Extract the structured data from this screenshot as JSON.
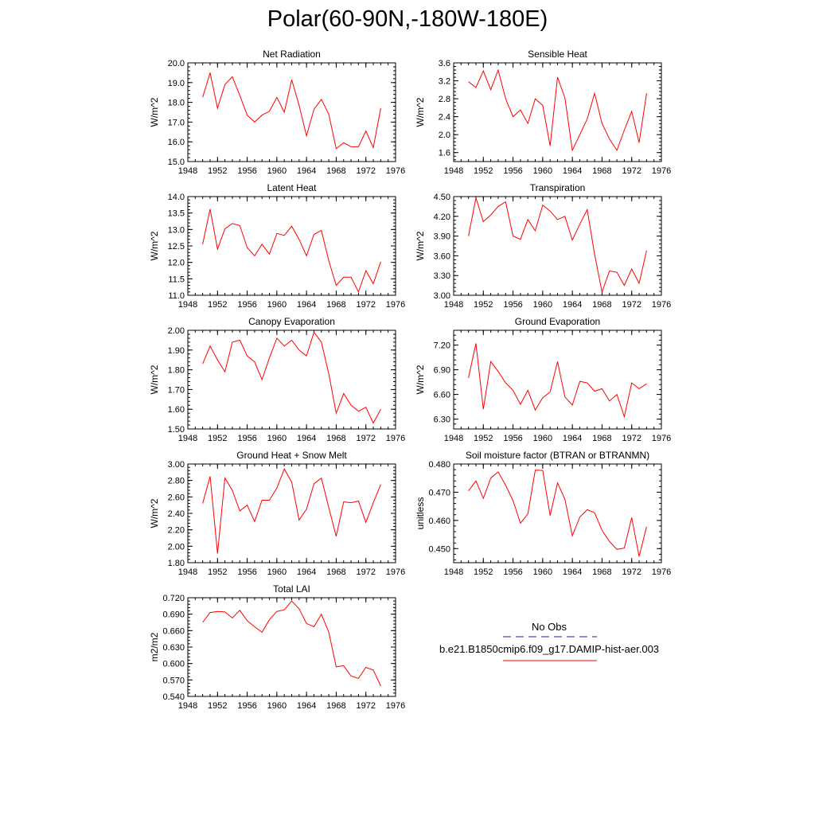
{
  "title": "Polar(60-90N,-180W-180E)",
  "legend": {
    "entries": [
      {
        "label": "No Obs",
        "color": "#1a1aa8",
        "dash": true
      },
      {
        "label": "b.e21.B1850cmip6.f09_g17.DAMIP-hist-aer.003",
        "color": "#ff0000",
        "dash": false
      }
    ]
  },
  "chart_data": [
    {
      "type": "line",
      "title": "Net Radiation",
      "ylabel": "W/m^2",
      "xlim": [
        1948,
        1976
      ],
      "xticks": [
        "1948",
        "1952",
        "1956",
        "1960",
        "1964",
        "1968",
        "1972",
        "1976"
      ],
      "ylim": [
        15.0,
        20.0
      ],
      "yticks": [
        "15.0",
        "16.0",
        "17.0",
        "18.0",
        "19.0",
        "20.0"
      ],
      "x": [
        1950,
        1951,
        1952,
        1953,
        1954,
        1955,
        1956,
        1957,
        1958,
        1959,
        1960,
        1961,
        1962,
        1963,
        1964,
        1965,
        1966,
        1967,
        1968,
        1969,
        1970,
        1971,
        1972,
        1973,
        1974
      ],
      "series": [
        {
          "color": "#ff0000",
          "values": [
            18.25,
            19.5,
            17.7,
            18.9,
            19.3,
            18.35,
            17.35,
            17.0,
            17.35,
            17.55,
            18.25,
            17.5,
            19.15,
            17.85,
            16.3,
            17.65,
            18.15,
            17.4,
            15.65,
            15.95,
            15.75,
            15.75,
            16.55,
            15.7,
            17.7
          ]
        }
      ]
    },
    {
      "type": "line",
      "title": "Sensible Heat",
      "ylabel": "W/m^2",
      "xlim": [
        1948,
        1976
      ],
      "xticks": [
        "1948",
        "1952",
        "1956",
        "1960",
        "1964",
        "1968",
        "1972",
        "1976"
      ],
      "ylim": [
        1.4,
        3.6
      ],
      "yticks": [
        "1.6",
        "2.0",
        "2.4",
        "2.8",
        "3.2",
        "3.6"
      ],
      "x": [
        1950,
        1951,
        1952,
        1953,
        1954,
        1955,
        1956,
        1957,
        1958,
        1959,
        1960,
        1961,
        1962,
        1963,
        1964,
        1965,
        1966,
        1967,
        1968,
        1969,
        1970,
        1971,
        1972,
        1973,
        1974
      ],
      "series": [
        {
          "color": "#ff0000",
          "values": [
            3.18,
            3.05,
            3.42,
            3.0,
            3.44,
            2.8,
            2.4,
            2.55,
            2.25,
            2.8,
            2.65,
            1.75,
            3.28,
            2.82,
            1.65,
            2.0,
            2.35,
            2.92,
            2.25,
            1.9,
            1.65,
            2.1,
            2.52,
            1.82,
            2.92
          ]
        }
      ]
    },
    {
      "type": "line",
      "title": "Latent Heat",
      "ylabel": "W/m^2",
      "xlim": [
        1948,
        1976
      ],
      "xticks": [
        "1948",
        "1952",
        "1956",
        "1960",
        "1964",
        "1968",
        "1972",
        "1976"
      ],
      "ylim": [
        11.0,
        14.0
      ],
      "yticks": [
        "11.0",
        "11.5",
        "12.0",
        "12.5",
        "13.0",
        "13.5",
        "14.0"
      ],
      "x": [
        1950,
        1951,
        1952,
        1953,
        1954,
        1955,
        1956,
        1957,
        1958,
        1959,
        1960,
        1961,
        1962,
        1963,
        1964,
        1965,
        1966,
        1967,
        1968,
        1969,
        1970,
        1971,
        1972,
        1973,
        1974
      ],
      "series": [
        {
          "color": "#ff0000",
          "values": [
            12.55,
            13.62,
            12.4,
            13.02,
            13.18,
            13.12,
            12.45,
            12.2,
            12.55,
            12.25,
            12.88,
            12.82,
            13.1,
            12.7,
            12.2,
            12.85,
            12.97,
            12.05,
            11.3,
            11.55,
            11.55,
            11.1,
            11.75,
            11.35,
            12.02
          ]
        }
      ]
    },
    {
      "type": "line",
      "title": "Transpiration",
      "ylabel": "W/m^2",
      "xlim": [
        1948,
        1976
      ],
      "xticks": [
        "1948",
        "1952",
        "1956",
        "1960",
        "1964",
        "1968",
        "1972",
        "1976"
      ],
      "ylim": [
        3.0,
        4.5
      ],
      "yticks": [
        "3.00",
        "3.30",
        "3.60",
        "3.90",
        "4.20",
        "4.50"
      ],
      "x": [
        1950,
        1951,
        1952,
        1953,
        1954,
        1955,
        1956,
        1957,
        1958,
        1959,
        1960,
        1961,
        1962,
        1963,
        1964,
        1965,
        1966,
        1967,
        1968,
        1969,
        1970,
        1971,
        1972,
        1973,
        1974
      ],
      "series": [
        {
          "color": "#ff0000",
          "values": [
            3.9,
            4.48,
            4.12,
            4.22,
            4.35,
            4.42,
            3.9,
            3.85,
            4.15,
            3.98,
            4.37,
            4.28,
            4.15,
            4.2,
            3.84,
            4.08,
            4.3,
            3.62,
            3.05,
            3.37,
            3.35,
            3.15,
            3.4,
            3.18,
            3.68
          ]
        }
      ]
    },
    {
      "type": "line",
      "title": "Canopy Evaporation",
      "ylabel": "W/m^2",
      "xlim": [
        1948,
        1976
      ],
      "xticks": [
        "1948",
        "1952",
        "1956",
        "1960",
        "1964",
        "1968",
        "1972",
        "1976"
      ],
      "ylim": [
        1.5,
        2.0
      ],
      "yticks": [
        "1.50",
        "1.60",
        "1.70",
        "1.80",
        "1.90",
        "2.00"
      ],
      "x": [
        1950,
        1951,
        1952,
        1953,
        1954,
        1955,
        1956,
        1957,
        1958,
        1959,
        1960,
        1961,
        1962,
        1963,
        1964,
        1965,
        1966,
        1967,
        1968,
        1969,
        1970,
        1971,
        1972,
        1973,
        1974
      ],
      "series": [
        {
          "color": "#ff0000",
          "values": [
            1.83,
            1.92,
            1.85,
            1.79,
            1.94,
            1.95,
            1.87,
            1.84,
            1.75,
            1.86,
            1.96,
            1.92,
            1.95,
            1.9,
            1.87,
            1.99,
            1.94,
            1.78,
            1.58,
            1.68,
            1.62,
            1.59,
            1.61,
            1.53,
            1.6
          ]
        }
      ]
    },
    {
      "type": "line",
      "title": "Ground Evaporation",
      "ylabel": "W/m^2",
      "xlim": [
        1948,
        1976
      ],
      "xticks": [
        "1948",
        "1952",
        "1956",
        "1960",
        "1964",
        "1968",
        "1972",
        "1976"
      ],
      "ylim": [
        6.18,
        7.38
      ],
      "yticks": [
        "6.30",
        "6.60",
        "6.90",
        "7.20"
      ],
      "x": [
        1950,
        1951,
        1952,
        1953,
        1954,
        1955,
        1956,
        1957,
        1958,
        1959,
        1960,
        1961,
        1962,
        1963,
        1964,
        1965,
        1966,
        1967,
        1968,
        1969,
        1970,
        1971,
        1972,
        1973,
        1974
      ],
      "series": [
        {
          "color": "#ff0000",
          "values": [
            6.8,
            7.22,
            6.42,
            7.0,
            6.88,
            6.74,
            6.65,
            6.48,
            6.65,
            6.41,
            6.56,
            6.63,
            7.0,
            6.57,
            6.47,
            6.76,
            6.74,
            6.64,
            6.67,
            6.52,
            6.6,
            6.33,
            6.74,
            6.67,
            6.73
          ]
        }
      ]
    },
    {
      "type": "line",
      "title": "Ground Heat + Snow Melt",
      "ylabel": "W/m^2",
      "xlim": [
        1948,
        1976
      ],
      "xticks": [
        "1948",
        "1952",
        "1956",
        "1960",
        "1964",
        "1968",
        "1972",
        "1976"
      ],
      "ylim": [
        1.8,
        3.0
      ],
      "yticks": [
        "1.80",
        "2.00",
        "2.20",
        "2.40",
        "2.60",
        "2.80",
        "3.00"
      ],
      "x": [
        1950,
        1951,
        1952,
        1953,
        1954,
        1955,
        1956,
        1957,
        1958,
        1959,
        1960,
        1961,
        1962,
        1963,
        1964,
        1965,
        1966,
        1967,
        1968,
        1969,
        1970,
        1971,
        1972,
        1973,
        1974
      ],
      "series": [
        {
          "color": "#ff0000",
          "values": [
            2.52,
            2.85,
            1.91,
            2.83,
            2.68,
            2.43,
            2.5,
            2.3,
            2.56,
            2.56,
            2.71,
            2.94,
            2.78,
            2.32,
            2.45,
            2.76,
            2.83,
            2.47,
            2.12,
            2.54,
            2.53,
            2.55,
            2.29,
            2.53,
            2.75
          ]
        }
      ]
    },
    {
      "type": "line",
      "title": "Soil moisture factor (BTRAN or BTRANMN)",
      "ylabel": "unitless",
      "xlim": [
        1948,
        1976
      ],
      "xticks": [
        "1948",
        "1952",
        "1956",
        "1960",
        "1964",
        "1968",
        "1972",
        "1976"
      ],
      "ylim": [
        0.445,
        0.48
      ],
      "yticks": [
        "0.450",
        "0.460",
        "0.470",
        "0.480"
      ],
      "x": [
        1950,
        1951,
        1952,
        1953,
        1954,
        1955,
        1956,
        1957,
        1958,
        1959,
        1960,
        1961,
        1962,
        1963,
        1964,
        1965,
        1966,
        1967,
        1968,
        1969,
        1970,
        1971,
        1972,
        1973,
        1974
      ],
      "series": [
        {
          "color": "#ff0000",
          "values": [
            0.4705,
            0.474,
            0.4678,
            0.475,
            0.4772,
            0.4725,
            0.467,
            0.459,
            0.4623,
            0.4778,
            0.4777,
            0.4617,
            0.4733,
            0.4675,
            0.4545,
            0.4612,
            0.4638,
            0.4627,
            0.4565,
            0.4525,
            0.4497,
            0.4502,
            0.461,
            0.4472,
            0.4578
          ]
        }
      ]
    },
    {
      "type": "line",
      "title": "Total LAI",
      "ylabel": "m2/m2",
      "xlim": [
        1948,
        1976
      ],
      "xticks": [
        "1948",
        "1952",
        "1956",
        "1960",
        "1964",
        "1968",
        "1972",
        "1976"
      ],
      "ylim": [
        0.54,
        0.72
      ],
      "yticks": [
        "0.540",
        "0.570",
        "0.600",
        "0.630",
        "0.660",
        "0.690",
        "0.720"
      ],
      "x": [
        1950,
        1951,
        1952,
        1953,
        1954,
        1955,
        1956,
        1957,
        1958,
        1959,
        1960,
        1961,
        1962,
        1963,
        1964,
        1965,
        1966,
        1967,
        1968,
        1969,
        1970,
        1971,
        1972,
        1973,
        1974
      ],
      "series": [
        {
          "color": "#ff0000",
          "values": [
            0.675,
            0.693,
            0.695,
            0.694,
            0.683,
            0.697,
            0.678,
            0.667,
            0.657,
            0.68,
            0.695,
            0.698,
            0.714,
            0.7,
            0.673,
            0.667,
            0.69,
            0.657,
            0.594,
            0.596,
            0.577,
            0.573,
            0.593,
            0.588,
            0.559
          ]
        }
      ]
    }
  ]
}
